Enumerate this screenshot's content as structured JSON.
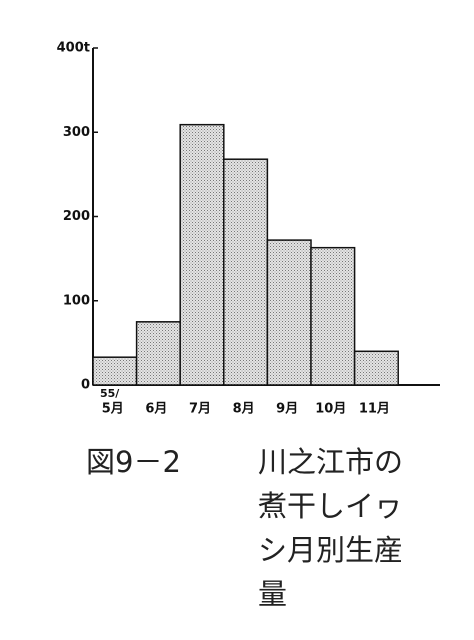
{
  "chart_data": {
    "type": "bar",
    "figure_label": "図9－2",
    "title": "川之江市の煮干しイヮシ月別生産量",
    "annotation": "55/",
    "categories": [
      "5月",
      "6月",
      "7月",
      "8月",
      "9月",
      "10月",
      "11月"
    ],
    "values": [
      33,
      75,
      309,
      268,
      172,
      163,
      40
    ],
    "color": "#c8c8c8",
    "ylim": [
      0,
      400
    ],
    "yticks": [
      0,
      100,
      200,
      300,
      {
        "value": 400,
        "label": "400t"
      }
    ]
  }
}
